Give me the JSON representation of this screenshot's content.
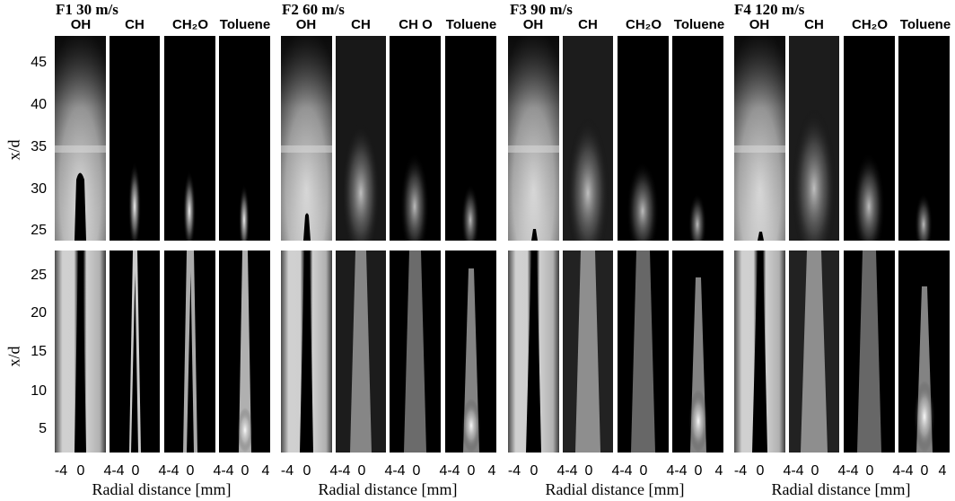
{
  "conditions": [
    {
      "title": "F1 30 m/s"
    },
    {
      "title": "F2 60 m/s"
    },
    {
      "title": "F3 90 m/s"
    },
    {
      "title": "F4 120 m/s"
    }
  ],
  "species_headers": [
    [
      "OH",
      "CH",
      "CH₂O",
      "Toluene"
    ],
    [
      "OH",
      "CH",
      "CH O",
      "Toluene"
    ],
    [
      "OH",
      "CH",
      "CH₂O",
      "Toluene"
    ],
    [
      "OH",
      "CH",
      "CH₂O",
      "Toluene"
    ]
  ],
  "axes": {
    "ylabel": "x/d",
    "xlabel": "Radial distance [mm]",
    "top_yticks": [
      "45",
      "40",
      "35",
      "30",
      "25"
    ],
    "bottom_yticks": [
      "25",
      "20",
      "15",
      "10",
      "5"
    ],
    "xticks_group": [
      "-4",
      "0",
      "4-4",
      "0",
      "4-4",
      "0",
      "4-4",
      "0",
      "4"
    ]
  }
}
